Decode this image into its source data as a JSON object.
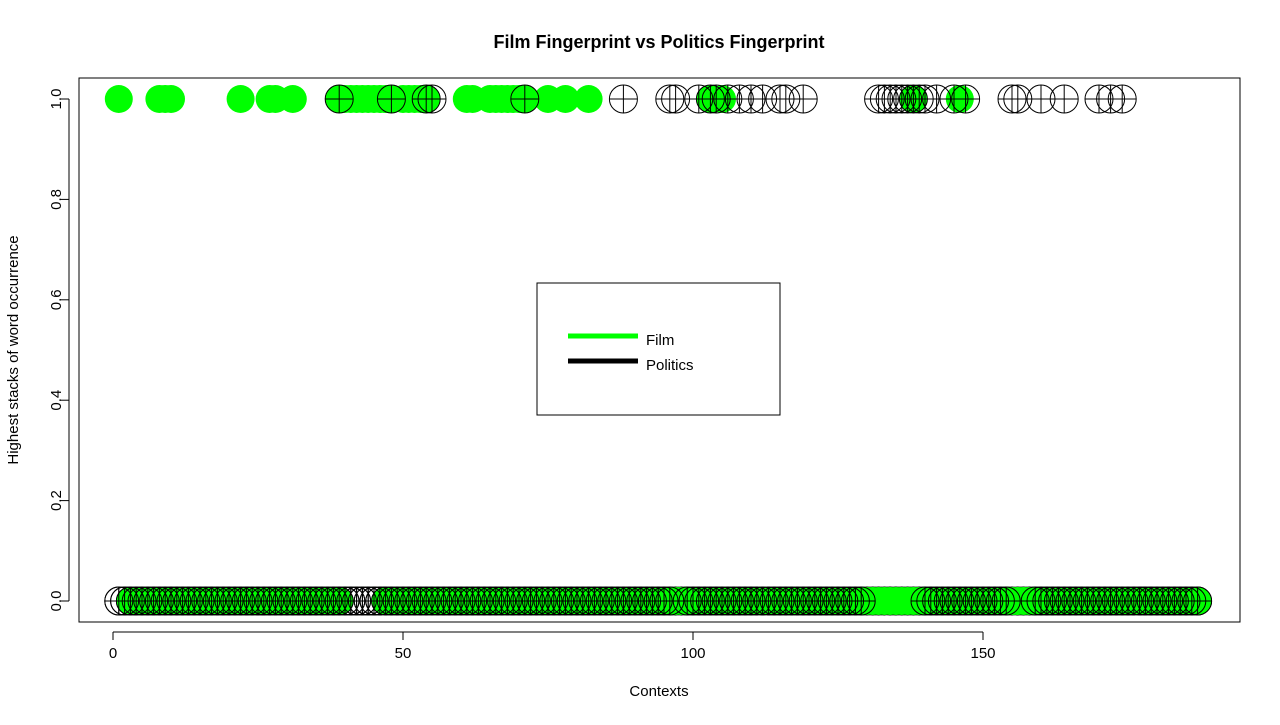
{
  "chart_data": {
    "type": "scatter",
    "title": "Film Fingerprint vs Politics Fingerprint",
    "xlabel": "Contexts",
    "ylabel": "Highest stacks of word occurrence",
    "xlim": [
      0,
      188
    ],
    "ylim": [
      0,
      1
    ],
    "x_ticks": [
      0,
      50,
      100,
      150
    ],
    "x_tick_labels": [
      "0",
      "50",
      "100",
      "150"
    ],
    "y_ticks": [
      0,
      0.2,
      0.4,
      0.6,
      0.8,
      1.0
    ],
    "y_tick_labels": [
      "0.0",
      "0.2",
      "0.4",
      "0.6",
      "0.8",
      "1.0"
    ],
    "grid": false,
    "legend_position": "center",
    "series": [
      {
        "name": "Film",
        "color": "#00ff00",
        "marker": "filled-circle",
        "points_at_1": [
          1,
          8,
          9,
          10,
          22,
          27,
          28,
          31,
          39,
          40,
          41,
          42,
          43,
          44,
          45,
          46,
          47,
          48,
          50,
          51,
          52,
          53,
          54,
          61,
          62,
          65,
          66,
          67,
          68,
          69,
          70,
          71,
          75,
          78,
          82,
          103,
          105,
          138,
          146
        ],
        "range_at_0": [
          2,
          187
        ]
      },
      {
        "name": "Politics",
        "color": "#000000",
        "marker": "crossed-circle",
        "points_at_1": [
          39,
          48,
          54,
          55,
          71,
          88,
          96,
          97,
          101,
          103,
          104,
          106,
          108,
          110,
          112,
          115,
          116,
          119,
          132,
          133,
          134,
          135,
          136,
          137,
          138,
          139,
          140,
          142,
          145,
          147,
          155,
          156,
          160,
          164,
          170,
          172,
          174
        ],
        "range_at_0": [
          1,
          187
        ]
      }
    ],
    "politics_mask_at_0_ranges": [
      [
        1,
        2
      ],
      [
        40,
        46
      ]
    ],
    "film_mask_at_0_ranges": [
      [
        97,
        98
      ],
      [
        130,
        139
      ],
      [
        155,
        158
      ]
    ]
  }
}
